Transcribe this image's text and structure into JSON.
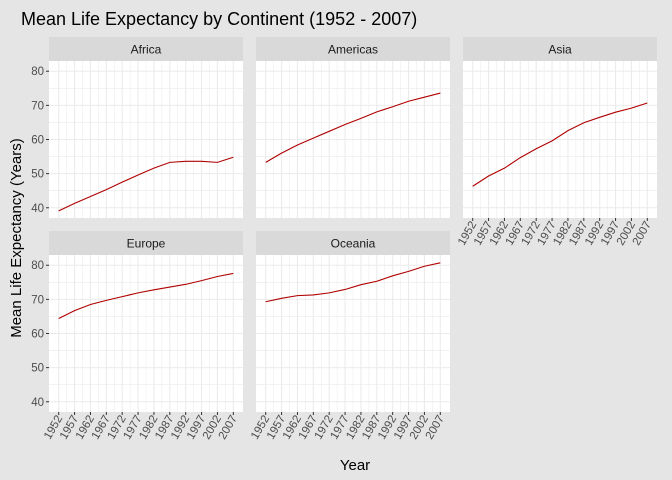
{
  "chart_data": {
    "type": "line",
    "title": "Mean Life Expectancy by Continent (1952 - 2007)",
    "xlabel": "Year",
    "ylabel": "Mean Life Expectancy (Years)",
    "x": [
      1952,
      1957,
      1962,
      1967,
      1972,
      1977,
      1982,
      1987,
      1992,
      1997,
      2002,
      2007
    ],
    "x_tick_labels": [
      "1952",
      "1957",
      "1962",
      "1967",
      "1972",
      "1977",
      "1982",
      "1987",
      "1992",
      "1997",
      "2002",
      "2007"
    ],
    "ylim": [
      37,
      83
    ],
    "y_ticks": [
      40,
      50,
      60,
      70,
      80
    ],
    "y_tick_labels": [
      "40",
      "50",
      "60",
      "70",
      "80"
    ],
    "line_color": "#b00000",
    "panel_background": "#ffffff",
    "grid_color": "#ebebeb",
    "strip_color": "#d9d9d9",
    "page_background": "#e5e5e5",
    "facets": [
      {
        "name": "Africa",
        "values": [
          39.1,
          41.3,
          43.3,
          45.3,
          47.5,
          49.6,
          51.6,
          53.3,
          53.6,
          53.6,
          53.3,
          54.8
        ]
      },
      {
        "name": "Americas",
        "values": [
          53.3,
          56.0,
          58.4,
          60.4,
          62.4,
          64.4,
          66.2,
          68.1,
          69.6,
          71.2,
          72.4,
          73.6
        ]
      },
      {
        "name": "Asia",
        "values": [
          46.3,
          49.3,
          51.6,
          54.7,
          57.3,
          59.6,
          62.6,
          64.9,
          66.5,
          68.0,
          69.2,
          70.7
        ]
      },
      {
        "name": "Europe",
        "values": [
          64.4,
          66.7,
          68.5,
          69.7,
          70.8,
          71.9,
          72.8,
          73.6,
          74.4,
          75.5,
          76.7,
          77.6
        ]
      },
      {
        "name": "Oceania",
        "values": [
          69.3,
          70.3,
          71.1,
          71.3,
          71.9,
          72.9,
          74.3,
          75.3,
          76.9,
          78.2,
          79.7,
          80.7
        ]
      }
    ]
  }
}
